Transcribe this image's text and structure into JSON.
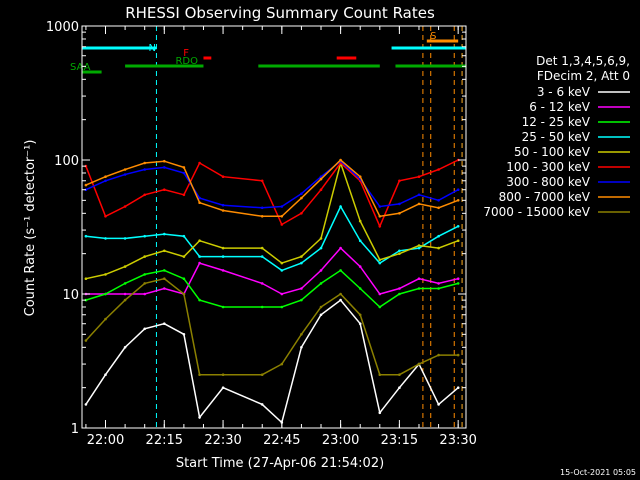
{
  "chart_data": {
    "type": "line",
    "title": "RHESSI Observing Summary Count Rates",
    "xlabel": "Start Time (27-Apr-06 21:54:02)",
    "ylabel": "Count Rate (s⁻¹ detector⁻¹)",
    "yscale": "log",
    "ylim": [
      1,
      1000
    ],
    "xlim": [
      "21:54",
      "23:32"
    ],
    "x_ticks": [
      "22:00",
      "22:15",
      "22:30",
      "22:45",
      "23:00",
      "23:15",
      "23:30"
    ],
    "y_ticks": [
      "1",
      "10",
      "100",
      "1000"
    ],
    "timestamp": "15-Oct-2021 05:05",
    "legend_header": [
      "Det 1,3,4,5,6,9,",
      "FDecim 2, Att 0"
    ],
    "legend_position": "right",
    "series": [
      {
        "name": "3 - 6 keV",
        "color": "#ffffff",
        "x": [
          "21:55",
          "22:00",
          "22:05",
          "22:10",
          "22:15",
          "22:20",
          "22:24",
          "22:30",
          "22:40",
          "22:45",
          "22:50",
          "22:55",
          "23:00",
          "23:05",
          "23:10",
          "23:15",
          "23:20",
          "23:25",
          "23:30"
        ],
        "y": [
          1.5,
          2.5,
          4,
          5.5,
          6,
          5,
          1.2,
          2,
          1.5,
          1.1,
          4,
          7,
          9,
          6,
          1.3,
          2,
          3,
          1.5,
          2
        ]
      },
      {
        "name": "6 - 12 keV",
        "color": "#ff00ff",
        "x": [
          "21:55",
          "22:00",
          "22:05",
          "22:10",
          "22:15",
          "22:20",
          "22:24",
          "22:30",
          "22:40",
          "22:45",
          "22:50",
          "22:55",
          "23:00",
          "23:05",
          "23:10",
          "23:15",
          "23:20",
          "23:25",
          "23:30"
        ],
        "y": [
          10,
          10,
          10,
          10,
          11,
          10,
          17,
          15,
          12,
          10,
          11,
          15,
          22,
          16,
          10,
          11,
          13,
          12,
          13
        ]
      },
      {
        "name": "12 - 25 keV",
        "color": "#00ff00",
        "x": [
          "21:55",
          "22:00",
          "22:05",
          "22:10",
          "22:15",
          "22:20",
          "22:24",
          "22:30",
          "22:40",
          "22:45",
          "22:50",
          "22:55",
          "23:00",
          "23:05",
          "23:10",
          "23:15",
          "23:20",
          "23:25",
          "23:30"
        ],
        "y": [
          9,
          10,
          12,
          14,
          15,
          13,
          9,
          8,
          8,
          8,
          9,
          12,
          15,
          11,
          8,
          10,
          11,
          11,
          12
        ]
      },
      {
        "name": "25 - 50 keV",
        "color": "#00ffff",
        "x": [
          "21:55",
          "22:00",
          "22:05",
          "22:10",
          "22:15",
          "22:20",
          "22:24",
          "22:30",
          "22:40",
          "22:45",
          "22:50",
          "22:55",
          "23:00",
          "23:05",
          "23:10",
          "23:15",
          "23:20",
          "23:25",
          "23:30"
        ],
        "y": [
          27,
          26,
          26,
          27,
          28,
          27,
          19,
          19,
          19,
          15,
          17,
          22,
          45,
          25,
          17,
          21,
          22,
          27,
          32
        ]
      },
      {
        "name": "50 - 100 keV",
        "color": "#cccc00",
        "x": [
          "21:55",
          "22:00",
          "22:05",
          "22:10",
          "22:15",
          "22:20",
          "22:24",
          "22:30",
          "22:40",
          "22:45",
          "22:50",
          "22:55",
          "23:00",
          "23:05",
          "23:10",
          "23:15",
          "23:20",
          "23:25",
          "23:30"
        ],
        "y": [
          13,
          14,
          16,
          19,
          21,
          19,
          25,
          22,
          22,
          17,
          19,
          26,
          95,
          35,
          18,
          20,
          23,
          22,
          25
        ]
      },
      {
        "name": "100 - 300 keV",
        "color": "#ff0000",
        "x": [
          "21:55",
          "22:00",
          "22:05",
          "22:10",
          "22:15",
          "22:20",
          "22:24",
          "22:30",
          "22:40",
          "22:45",
          "22:50",
          "22:55",
          "23:00",
          "23:05",
          "23:10",
          "23:15",
          "23:20",
          "23:25",
          "23:30"
        ],
        "y": [
          90,
          38,
          45,
          55,
          60,
          55,
          95,
          75,
          70,
          33,
          40,
          60,
          95,
          70,
          32,
          70,
          75,
          85,
          100
        ]
      },
      {
        "name": "300 - 800 keV",
        "color": "#0000ff",
        "x": [
          "21:55",
          "22:00",
          "22:05",
          "22:10",
          "22:15",
          "22:20",
          "22:24",
          "22:30",
          "22:40",
          "22:45",
          "22:50",
          "22:55",
          "23:00",
          "23:05",
          "23:10",
          "23:15",
          "23:20",
          "23:25",
          "23:30"
        ],
        "y": [
          60,
          70,
          78,
          85,
          88,
          80,
          52,
          46,
          44,
          45,
          56,
          75,
          98,
          72,
          45,
          47,
          55,
          50,
          60
        ]
      },
      {
        "name": "800 - 7000 keV",
        "color": "#ff8c00",
        "x": [
          "21:55",
          "22:00",
          "22:05",
          "22:10",
          "22:15",
          "22:20",
          "22:24",
          "22:30",
          "22:40",
          "22:45",
          "22:50",
          "22:55",
          "23:00",
          "23:05",
          "23:10",
          "23:15",
          "23:20",
          "23:25",
          "23:30"
        ],
        "y": [
          65,
          75,
          85,
          95,
          98,
          88,
          48,
          42,
          38,
          38,
          52,
          72,
          100,
          75,
          38,
          40,
          47,
          44,
          50
        ]
      },
      {
        "name": "7000 - 15000 keV",
        "color": "#8b8000",
        "x": [
          "21:55",
          "22:00",
          "22:05",
          "22:10",
          "22:15",
          "22:20",
          "22:24",
          "22:30",
          "22:40",
          "22:45",
          "22:50",
          "22:55",
          "23:00",
          "23:05",
          "23:10",
          "23:15",
          "23:20",
          "23:25",
          "23:30"
        ],
        "y": [
          4.5,
          6.5,
          9,
          12,
          13,
          10,
          2.5,
          2.5,
          2.5,
          3,
          5,
          8,
          10,
          7,
          2.5,
          2.5,
          3,
          3.5,
          3.5
        ]
      }
    ],
    "annotations": [
      {
        "label": "N",
        "color": "#00ffff",
        "start": "21:54",
        "end": "22:13"
      },
      {
        "label": "N",
        "color": "#00ffff",
        "start": "23:13",
        "end": "23:32"
      },
      {
        "label": "F",
        "color": "#ff0000",
        "start": "22:25",
        "end": "22:27"
      },
      {
        "label": "F",
        "color": "#ff0000",
        "start": "22:59",
        "end": "23:04"
      },
      {
        "label": "S",
        "color": "#ff8c00",
        "start": "23:22",
        "end": "23:30"
      },
      {
        "label": "SAA",
        "color": "#00aa00",
        "start": "21:54",
        "end": "21:59"
      },
      {
        "label": "RDO",
        "color": "#00aa00",
        "start": "22:05",
        "end": "22:25"
      },
      {
        "label": "RDO",
        "color": "#00aa00",
        "start": "22:39",
        "end": "23:10"
      },
      {
        "label": "RDO",
        "color": "#00aa00",
        "start": "23:14",
        "end": "23:32"
      }
    ],
    "vertical_lines": [
      {
        "time": "22:13",
        "color": "#00ffff"
      },
      {
        "time": "23:31",
        "color": "#00ffff"
      },
      {
        "time": "23:21",
        "color": "#ff8c00"
      },
      {
        "time": "23:23",
        "color": "#ff8c00"
      },
      {
        "time": "23:29",
        "color": "#ff8c00"
      },
      {
        "time": "23:31",
        "color": "#ff8c00"
      }
    ]
  }
}
